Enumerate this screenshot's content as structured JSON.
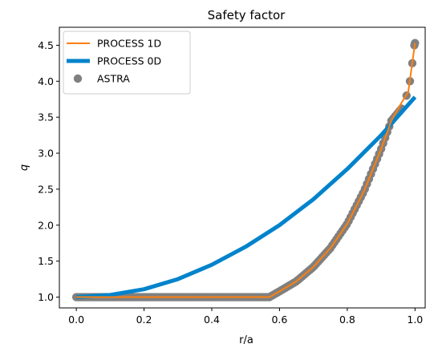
{
  "chart_data": {
    "type": "line",
    "title": "Safety factor",
    "xlabel": "r/a",
    "ylabel": "q",
    "xlim": [
      -0.05,
      1.03
    ],
    "ylim": [
      0.85,
      4.75
    ],
    "xticks": [
      0.0,
      0.2,
      0.4,
      0.6,
      0.8,
      1.0
    ],
    "xtick_labels": [
      "0.0",
      "0.2",
      "0.4",
      "0.6",
      "0.8",
      "1.0"
    ],
    "yticks": [
      1.0,
      1.5,
      2.0,
      2.5,
      3.0,
      3.5,
      4.0,
      4.5
    ],
    "ytick_labels": [
      "1.0",
      "1.5",
      "2.0",
      "2.5",
      "3.0",
      "3.5",
      "4.0",
      "4.5"
    ],
    "grid": false,
    "legend": {
      "placement": "top-left",
      "entries": [
        {
          "label": "PROCESS 1D",
          "color": "#ff7f0e",
          "style": "line"
        },
        {
          "label": "PROCESS 0D",
          "color": "#0083cc",
          "style": "thick-line"
        },
        {
          "label": "ASTRA",
          "color": "#808080",
          "style": "marker"
        }
      ]
    },
    "series": [
      {
        "name": "PROCESS 1D",
        "color": "#ff7f0e",
        "x": [
          0.0,
          0.1,
          0.2,
          0.3,
          0.4,
          0.5,
          0.57,
          0.6,
          0.65,
          0.7,
          0.75,
          0.8,
          0.85,
          0.9,
          0.93,
          0.96,
          0.98,
          1.0
        ],
        "y": [
          1.0,
          1.0,
          1.0,
          1.0,
          1.0,
          1.0,
          1.0,
          1.08,
          1.22,
          1.42,
          1.68,
          2.02,
          2.48,
          3.06,
          3.45,
          3.7,
          3.85,
          4.53
        ]
      },
      {
        "name": "PROCESS 0D",
        "color": "#0083cc",
        "x": [
          0.0,
          0.1,
          0.2,
          0.3,
          0.4,
          0.5,
          0.6,
          0.7,
          0.8,
          0.9,
          1.0
        ],
        "y": [
          1.0,
          1.03,
          1.11,
          1.25,
          1.45,
          1.7,
          2.0,
          2.36,
          2.78,
          3.25,
          3.78
        ]
      },
      {
        "name": "ASTRA",
        "color": "#808080",
        "x": [
          0.0,
          0.1,
          0.2,
          0.3,
          0.4,
          0.5,
          0.57,
          0.6,
          0.65,
          0.7,
          0.75,
          0.8,
          0.85,
          0.9,
          0.93,
          0.96,
          0.975,
          0.985,
          0.992,
          0.998,
          1.0
        ],
        "y": [
          1.0,
          1.0,
          1.0,
          1.0,
          1.0,
          1.0,
          1.0,
          1.08,
          1.22,
          1.42,
          1.68,
          2.02,
          2.48,
          3.06,
          3.45,
          3.62,
          3.8,
          4.0,
          4.25,
          4.5,
          4.53
        ]
      }
    ]
  }
}
